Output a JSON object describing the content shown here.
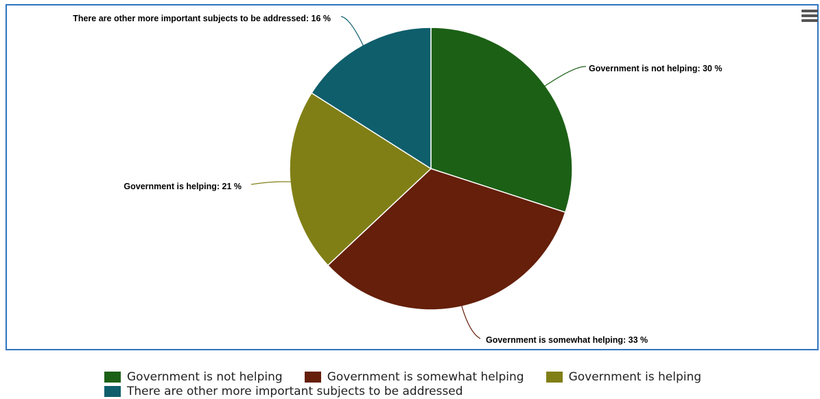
{
  "chart_data": {
    "type": "pie",
    "title": "",
    "slices": [
      {
        "name": "Government is not helping",
        "value": 30,
        "label": "Government is not helping: 30 %",
        "color": "#1c6016"
      },
      {
        "name": "Government is somewhat helping",
        "value": 33,
        "label": "Government is somewhat helping: 33 %",
        "color": "#651f0a"
      },
      {
        "name": "Government is helping",
        "value": 21,
        "label": "Government is helping: 21 %",
        "color": "#807f16"
      },
      {
        "name": "There are other more important subjects to be addressed",
        "value": 16,
        "label": "There are other more important subjects to be addressed: 16 %",
        "color": "#0f5e6c"
      }
    ],
    "legend": {
      "position": "bottom"
    }
  },
  "colors": {
    "frame_border": "#2f74c0",
    "menu_icon": "#555555"
  },
  "menu": {
    "icon": "hamburger-menu-icon"
  }
}
